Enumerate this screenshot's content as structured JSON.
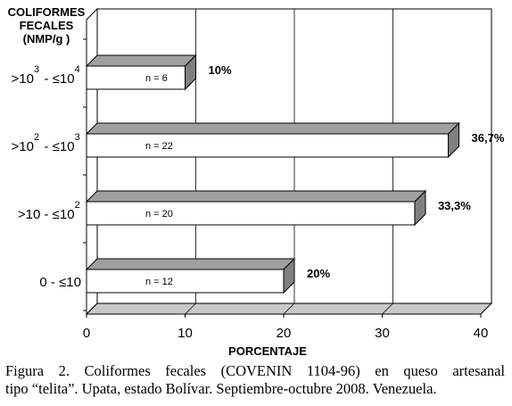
{
  "chart_data": {
    "type": "bar",
    "orientation": "horizontal",
    "style": "3d",
    "ylabel_lines": [
      "COLIFORMES",
      "FECALES",
      "(NMP/g )"
    ],
    "xlabel": "PORCENTAJE",
    "categories": [
      {
        "base": "0 - ≤10",
        "exp1": "",
        "mid": "",
        "exp2": ""
      },
      {
        "base": ">10 - ≤10",
        "exp1": "",
        "mid": "",
        "exp2": "2"
      },
      {
        "base": ">10",
        "exp1": "2",
        "mid": " - ≤10",
        "exp2": "3"
      },
      {
        "base": ">10",
        "exp1": "3",
        "mid": " - ≤10",
        "exp2": "4"
      }
    ],
    "values": [
      20,
      33.3,
      36.7,
      10
    ],
    "value_labels": [
      "20%",
      "33,3%",
      "36,7%",
      "10%"
    ],
    "n_labels": [
      "n = 12",
      "n = 20",
      "n = 22",
      "n = 6"
    ],
    "xlim": [
      0,
      40
    ],
    "xticks": [
      0,
      10,
      20,
      30,
      40
    ],
    "grid": true,
    "legend": "none",
    "colors": {
      "front": "#ffffff",
      "top": "#a0a0a0",
      "side": "#808080",
      "wall": "#ffffff",
      "floor": "#c8c8c8",
      "line": "#000000"
    }
  },
  "caption_lines": [
    "Figura 2. Coliformes fecales (COVENIN 1104-96) en queso artesanal",
    "tipo “telita”. Upata, estado Bolívar. Septiembre-octubre 2008. Venezuela."
  ]
}
